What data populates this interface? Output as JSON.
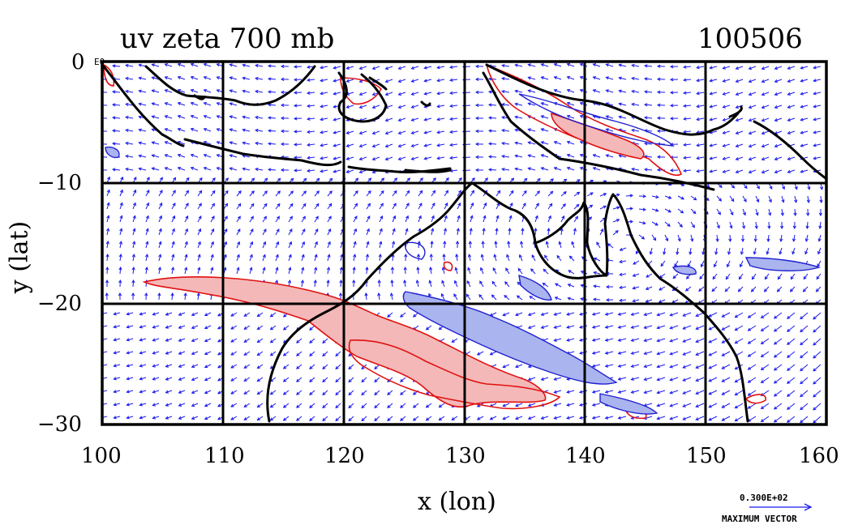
{
  "title_left": "uv zeta 700 mb",
  "title_right": "100506",
  "corner_tag": "E0",
  "xlabel": "x (lon)",
  "ylabel": "y (lat)",
  "x_ticks": [
    "100",
    "110",
    "120",
    "130",
    "140",
    "150",
    "160"
  ],
  "y_ticks": [
    "0",
    "−10",
    "−20",
    "−30"
  ],
  "scale_value": "0.300E+02",
  "scale_label": "MAXIMUM VECTOR",
  "colors": {
    "vector": "#1a1aee",
    "positive_contour": "#e01010",
    "positive_fill": "#f4b8b8",
    "negative_contour": "#2020d0",
    "negative_fill": "#aab4ee",
    "coast": "#000000",
    "grid": "#000000"
  },
  "map": {
    "lon_range": [
      100,
      160
    ],
    "lat_range": [
      -30,
      0
    ],
    "grid_lons": [
      110,
      120,
      130,
      140,
      150
    ],
    "grid_lats": [
      -10,
      -20
    ]
  }
}
